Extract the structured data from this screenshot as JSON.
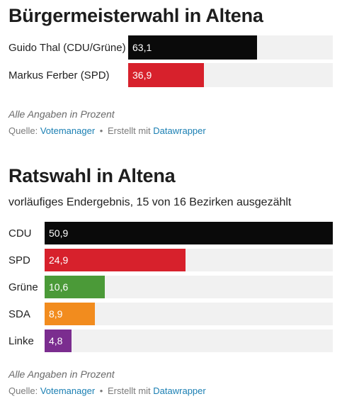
{
  "colors": {
    "black": "#0a0a0a",
    "red": "#d7212c",
    "green": "#4b9a38",
    "orange": "#f28c1e",
    "purple": "#7b2d8f",
    "track": "#f1f1f1",
    "link": "#1a7fb3"
  },
  "chart_data": [
    {
      "type": "bar",
      "orientation": "horizontal",
      "title": "Bürgermeisterwahl in Altena",
      "subtitle": "",
      "xlim": [
        0,
        100
      ],
      "categories": [
        "Guido Thal (CDU/Grüne)",
        "Markus Ferber (SPD)"
      ],
      "values": [
        63.1,
        36.9
      ],
      "value_labels": [
        "63,1",
        "36,9"
      ],
      "bar_colors": [
        "#0a0a0a",
        "#d7212c"
      ],
      "note": "Alle Angaben in Prozent",
      "source_prefix": "Quelle:",
      "source_name": "Votemanager",
      "separator": "•",
      "credit_prefix": "Erstellt mit",
      "credit_name": "Datawrapper"
    },
    {
      "type": "bar",
      "orientation": "horizontal",
      "title": "Ratswahl in Altena",
      "subtitle": "vorläufiges Endergebnis, 15 von 16 Bezirken ausgezählt",
      "xlim": [
        0,
        50.9
      ],
      "categories": [
        "CDU",
        "SPD",
        "Grüne",
        "SDA",
        "Linke"
      ],
      "values": [
        50.9,
        24.9,
        10.6,
        8.9,
        4.8
      ],
      "value_labels": [
        "50,9",
        "24,9",
        "10,6",
        "8,9",
        "4,8"
      ],
      "bar_colors": [
        "#0a0a0a",
        "#d7212c",
        "#4b9a38",
        "#f28c1e",
        "#7b2d8f"
      ],
      "note": "Alle Angaben in Prozent",
      "source_prefix": "Quelle:",
      "source_name": "Votemanager",
      "separator": "•",
      "credit_prefix": "Erstellt mit",
      "credit_name": "Datawrapper"
    }
  ]
}
